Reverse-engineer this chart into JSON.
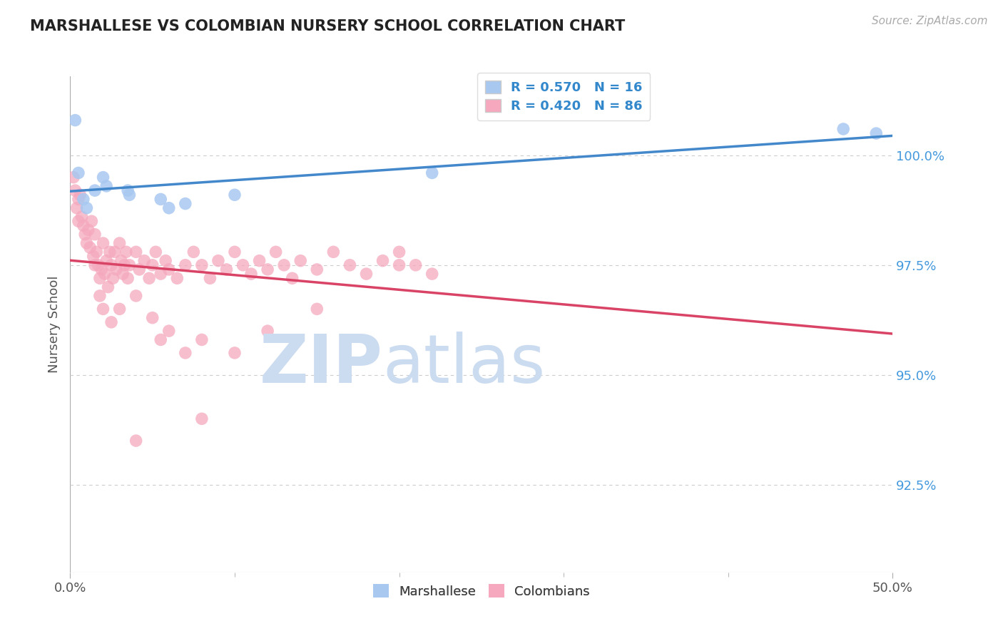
{
  "title": "MARSHALLESE VS COLOMBIAN NURSERY SCHOOL CORRELATION CHART",
  "source": "Source: ZipAtlas.com",
  "ylabel": "Nursery School",
  "xlim": [
    0.0,
    50.0
  ],
  "ylim": [
    90.5,
    101.8
  ],
  "yticks": [
    92.5,
    95.0,
    97.5,
    100.0
  ],
  "ytick_labels": [
    "92.5%",
    "95.0%",
    "97.5%",
    "100.0%"
  ],
  "marshallese_color": "#a8c8f0",
  "colombian_color": "#f5a8be",
  "marshallese_trend_color": "#4488cc",
  "colombian_trend_color": "#d94466",
  "grid_color": "#cccccc",
  "background_color": "#ffffff",
  "watermark_zip": "ZIP",
  "watermark_atlas": "atlas",
  "watermark_color": "#ccdcf0",
  "marshallese_points": [
    [
      0.3,
      100.8
    ],
    [
      0.5,
      99.6
    ],
    [
      0.8,
      99.0
    ],
    [
      1.0,
      98.8
    ],
    [
      1.5,
      99.2
    ],
    [
      2.0,
      99.5
    ],
    [
      2.2,
      99.3
    ],
    [
      3.5,
      99.2
    ],
    [
      3.6,
      99.1
    ],
    [
      5.5,
      99.0
    ],
    [
      6.0,
      98.8
    ],
    [
      7.0,
      98.9
    ],
    [
      10.0,
      99.1
    ],
    [
      22.0,
      99.6
    ],
    [
      47.0,
      100.6
    ],
    [
      49.0,
      100.5
    ]
  ],
  "colombian_points": [
    [
      0.2,
      99.5
    ],
    [
      0.3,
      99.2
    ],
    [
      0.4,
      98.8
    ],
    [
      0.5,
      99.0
    ],
    [
      0.5,
      98.5
    ],
    [
      0.6,
      99.1
    ],
    [
      0.7,
      98.6
    ],
    [
      0.8,
      98.4
    ],
    [
      0.9,
      98.2
    ],
    [
      1.0,
      98.0
    ],
    [
      1.1,
      98.3
    ],
    [
      1.2,
      97.9
    ],
    [
      1.3,
      98.5
    ],
    [
      1.4,
      97.7
    ],
    [
      1.5,
      98.2
    ],
    [
      1.5,
      97.5
    ],
    [
      1.6,
      97.8
    ],
    [
      1.7,
      97.5
    ],
    [
      1.8,
      97.2
    ],
    [
      1.9,
      97.4
    ],
    [
      2.0,
      98.0
    ],
    [
      2.1,
      97.3
    ],
    [
      2.2,
      97.6
    ],
    [
      2.3,
      97.0
    ],
    [
      2.4,
      97.8
    ],
    [
      2.5,
      97.5
    ],
    [
      2.6,
      97.2
    ],
    [
      2.7,
      97.8
    ],
    [
      2.8,
      97.4
    ],
    [
      3.0,
      98.0
    ],
    [
      3.1,
      97.6
    ],
    [
      3.2,
      97.3
    ],
    [
      3.3,
      97.5
    ],
    [
      3.4,
      97.8
    ],
    [
      3.5,
      97.2
    ],
    [
      3.6,
      97.5
    ],
    [
      4.0,
      97.8
    ],
    [
      4.2,
      97.4
    ],
    [
      4.5,
      97.6
    ],
    [
      4.8,
      97.2
    ],
    [
      5.0,
      97.5
    ],
    [
      5.2,
      97.8
    ],
    [
      5.5,
      97.3
    ],
    [
      5.8,
      97.6
    ],
    [
      6.0,
      97.4
    ],
    [
      6.5,
      97.2
    ],
    [
      7.0,
      97.5
    ],
    [
      7.5,
      97.8
    ],
    [
      8.0,
      97.5
    ],
    [
      8.5,
      97.2
    ],
    [
      9.0,
      97.6
    ],
    [
      9.5,
      97.4
    ],
    [
      10.0,
      97.8
    ],
    [
      10.5,
      97.5
    ],
    [
      11.0,
      97.3
    ],
    [
      11.5,
      97.6
    ],
    [
      12.0,
      97.4
    ],
    [
      12.5,
      97.8
    ],
    [
      13.0,
      97.5
    ],
    [
      13.5,
      97.2
    ],
    [
      14.0,
      97.6
    ],
    [
      15.0,
      97.4
    ],
    [
      16.0,
      97.8
    ],
    [
      17.0,
      97.5
    ],
    [
      18.0,
      97.3
    ],
    [
      19.0,
      97.6
    ],
    [
      20.0,
      97.8
    ],
    [
      21.0,
      97.5
    ],
    [
      22.0,
      97.3
    ],
    [
      1.8,
      96.8
    ],
    [
      2.0,
      96.5
    ],
    [
      2.5,
      96.2
    ],
    [
      3.0,
      96.5
    ],
    [
      4.0,
      96.8
    ],
    [
      5.0,
      96.3
    ],
    [
      5.5,
      95.8
    ],
    [
      6.0,
      96.0
    ],
    [
      7.0,
      95.5
    ],
    [
      8.0,
      95.8
    ],
    [
      10.0,
      95.5
    ],
    [
      12.0,
      96.0
    ],
    [
      15.0,
      96.5
    ],
    [
      4.0,
      93.5
    ],
    [
      8.0,
      94.0
    ],
    [
      20.0,
      97.5
    ]
  ]
}
